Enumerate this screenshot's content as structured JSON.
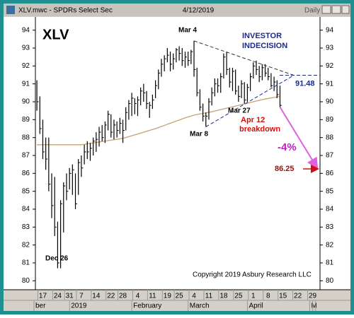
{
  "window": {
    "title": "XLV.mwc - SPDRs Select Sec",
    "date": "4/12/2019",
    "interval": "Daily"
  },
  "chart_data": {
    "type": "ohlc",
    "color": "#000000",
    "ylim": [
      79.5,
      94.5
    ],
    "yticks": [
      80,
      81,
      82,
      83,
      84,
      85,
      86,
      87,
      88,
      89,
      90,
      91,
      92,
      93,
      94
    ],
    "categories": [
      null,
      null,
      "17",
      null,
      null,
      null,
      null,
      "24",
      null,
      null,
      null,
      "31",
      null,
      null,
      null,
      "7",
      null,
      null,
      null,
      null,
      "14",
      null,
      null,
      null,
      null,
      "22",
      null,
      null,
      null,
      "28",
      null,
      null,
      null,
      null,
      "4",
      null,
      null,
      null,
      null,
      "11",
      null,
      null,
      null,
      null,
      "19",
      null,
      null,
      null,
      "25",
      null,
      null,
      null,
      null,
      "4",
      null,
      null,
      null,
      null,
      "11",
      null,
      null,
      null,
      null,
      "18",
      null,
      null,
      null,
      null,
      "25",
      null,
      null,
      null,
      null,
      "1",
      null,
      null,
      null,
      null,
      "8",
      null,
      null,
      null,
      null,
      "15",
      null,
      null,
      null,
      null,
      "22",
      null,
      null,
      null,
      null,
      "29",
      null,
      null
    ],
    "months": [
      "ber",
      null,
      null,
      null,
      null,
      null,
      null,
      null,
      null,
      null,
      null,
      null,
      "2019",
      null,
      null,
      null,
      null,
      null,
      null,
      null,
      null,
      null,
      null,
      null,
      null,
      null,
      null,
      null,
      null,
      null,
      null,
      null,
      null,
      "February",
      null,
      null,
      null,
      null,
      null,
      null,
      null,
      null,
      null,
      null,
      null,
      null,
      null,
      null,
      null,
      null,
      null,
      null,
      "March",
      null,
      null,
      null,
      null,
      null,
      null,
      null,
      null,
      null,
      null,
      null,
      null,
      null,
      null,
      null,
      null,
      null,
      null,
      null,
      "April",
      null,
      null,
      null,
      null,
      null,
      null,
      null,
      null,
      null,
      null,
      null,
      null,
      null,
      null,
      null,
      null,
      null,
      null,
      null,
      null,
      "M"
    ],
    "high": [
      91.2,
      90.3,
      89,
      88,
      88,
      86,
      85.8,
      83.3,
      84.5,
      85.5,
      86,
      86.3,
      86.5,
      86,
      86.8,
      87,
      87.6,
      87.8,
      87.7,
      88,
      88.3,
      88.6,
      88.7,
      88.9,
      89.5,
      89.3,
      89,
      88.9,
      89.1,
      89,
      89.7,
      90.1,
      90.5,
      90.2,
      90.3,
      90.8,
      91,
      90.6,
      90,
      90.4,
      91.2,
      91.8,
      92.4,
      92.6,
      93,
      92.8,
      92.7,
      93,
      93.1,
      93,
      92.8,
      92.8,
      92.9,
      93.4,
      91.9,
      90.7,
      89.9,
      89.4,
      90.2,
      90.8,
      91.3,
      91.3,
      91.6,
      92.7,
      92.8,
      91.9,
      91.9,
      91.8,
      90.9,
      91.2,
      91.1,
      91,
      91.6,
      92.2,
      92.3,
      92,
      92.1,
      92.1,
      91.9,
      91.6,
      91.4,
      91.2,
      90.9,
      null,
      null,
      null,
      null,
      null,
      null,
      null,
      null,
      null,
      null,
      null,
      null,
      null
    ],
    "low": [
      89.5,
      88.2,
      86.8,
      86.2,
      85,
      83.5,
      82.5,
      80.7,
      80.7,
      82.7,
      84.5,
      85.1,
      84.8,
      84,
      84.8,
      85.8,
      86.5,
      86.8,
      86.7,
      87,
      87.2,
      87.5,
      87.8,
      87.7,
      88.4,
      88,
      87.9,
      88,
      88.2,
      87.7,
      88.4,
      89,
      89.2,
      89.3,
      89.2,
      89.8,
      90,
      89.6,
      89.1,
      89.6,
      90.2,
      90.7,
      91.4,
      91.7,
      92.2,
      91.7,
      91.8,
      92.2,
      92.3,
      92,
      91.9,
      92,
      92.1,
      91.4,
      90.3,
      89.5,
      88.9,
      88.6,
      89,
      89.8,
      90.3,
      90.5,
      90.5,
      91.3,
      91.5,
      90.8,
      90.6,
      90.4,
      90,
      90.2,
      89.9,
      90,
      90.6,
      91.3,
      91.5,
      91.1,
      91.2,
      91.4,
      91.2,
      90.8,
      90.6,
      90.2,
      89.7,
      null,
      null,
      null,
      null,
      null,
      null,
      null,
      null,
      null,
      null,
      null,
      null,
      null
    ],
    "close": [
      90,
      88.5,
      87.2,
      86.8,
      85.4,
      84.2,
      83,
      81,
      84.3,
      85.3,
      85,
      86,
      86.2,
      84.3,
      86.6,
      86.3,
      87.2,
      87.2,
      87.4,
      87.8,
      87.9,
      88.3,
      88,
      88.7,
      89.3,
      88.3,
      88.7,
      88.4,
      88.8,
      88.4,
      89.4,
      89.9,
      90.2,
      89.9,
      90.1,
      90.6,
      90.5,
      89.9,
      89.8,
      90.1,
      90.9,
      91.6,
      92.1,
      92.4,
      92.6,
      92.1,
      92.4,
      92.9,
      92.7,
      92.3,
      92.5,
      92.3,
      92.8,
      91.8,
      90.5,
      89.7,
      89.2,
      89.2,
      90,
      90.5,
      91,
      90.9,
      91.4,
      92.5,
      91.8,
      91.1,
      91.7,
      90.6,
      90.3,
      91,
      90.1,
      90.8,
      91.4,
      92,
      91.8,
      91.4,
      91.9,
      91.6,
      91.4,
      90.9,
      91.1,
      90.4,
      89.8,
      null,
      null,
      null,
      null,
      null,
      null,
      null,
      null,
      null,
      null,
      null,
      null,
      null
    ],
    "moving_average": {
      "color": "#c8a070",
      "values": [
        87.6,
        87.6,
        87.6,
        87.6,
        87.6,
        87.6,
        87.6,
        87.6,
        87.6,
        87.6,
        87.6,
        87.6,
        87.6,
        87.6,
        87.6,
        87.6,
        87.62,
        87.65,
        87.68,
        87.7,
        87.72,
        87.75,
        87.78,
        87.8,
        87.83,
        87.86,
        87.88,
        87.9,
        87.93,
        87.96,
        88.0,
        88.05,
        88.1,
        88.15,
        88.2,
        88.25,
        88.3,
        88.35,
        88.4,
        88.45,
        88.5,
        88.56,
        88.62,
        88.68,
        88.74,
        88.8,
        88.86,
        88.92,
        88.98,
        89.04,
        89.1,
        89.15,
        89.2,
        89.25,
        89.29,
        89.32,
        89.35,
        89.38,
        89.41,
        89.44,
        89.48,
        89.52,
        89.56,
        89.6,
        89.64,
        89.68,
        89.72,
        89.76,
        89.8,
        89.84,
        89.88,
        89.92,
        89.96,
        90.0,
        90.04,
        90.08,
        90.12,
        90.15,
        90.18,
        90.21,
        90.24,
        90.27,
        90.3,
        null,
        null,
        null,
        null,
        null,
        null,
        null,
        null,
        null,
        null,
        null,
        null,
        null
      ]
    },
    "labels": {
      "symbol": "XLV",
      "top": "Mar 4",
      "low1": "Dec 26",
      "low2": "Mar 8",
      "low3": "Mar 27",
      "pattern": [
        "INVESTOR",
        "INDECISION"
      ],
      "breakdown": [
        "Apr 12",
        "breakdown"
      ],
      "projection": "-4%",
      "copyright": "Copyright 2019 Asbury Research LLC"
    },
    "levels": {
      "apex": 91.48,
      "target": 86.25
    }
  }
}
